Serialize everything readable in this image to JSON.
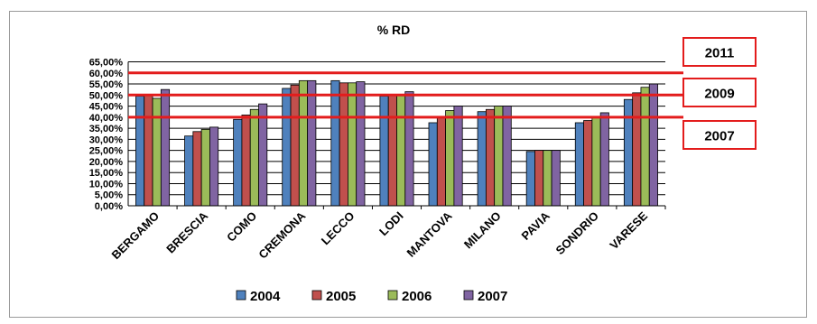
{
  "chart_data": {
    "type": "bar",
    "title": "% RD",
    "xlabel": "",
    "ylabel": "",
    "ylim": [
      0,
      65
    ],
    "y_ticks": [
      "0,00%",
      "5,00%",
      "10,00%",
      "15,00%",
      "20,00%",
      "25,00%",
      "30,00%",
      "35,00%",
      "40,00%",
      "45,00%",
      "50,00%",
      "55,00%",
      "60,00%",
      "65,00%"
    ],
    "grid": true,
    "legend_position": "bottom",
    "categories": [
      "BERGAMO",
      "BRESCIA",
      "COMO",
      "CREMONA",
      "LECCO",
      "LODI",
      "MANTOVA",
      "MILANO",
      "PAVIA",
      "SONDRIO",
      "VARESE"
    ],
    "series": [
      {
        "name": "2004",
        "color": "#4f81bd",
        "values": [
          49.5,
          31.5,
          39,
          53,
          56.5,
          49.5,
          37.5,
          42.5,
          24.5,
          37.5,
          48
        ]
      },
      {
        "name": "2005",
        "color": "#c0504d",
        "values": [
          50,
          33.5,
          41,
          54.5,
          55.5,
          50,
          40,
          43.5,
          25,
          38.5,
          51
        ]
      },
      {
        "name": "2006",
        "color": "#9bbb59",
        "values": [
          48.5,
          34.5,
          43.5,
          56.5,
          55.5,
          50,
          43,
          45,
          25,
          40,
          53.5
        ]
      },
      {
        "name": "2007",
        "color": "#8064a2",
        "values": [
          52.5,
          35.5,
          46,
          56.5,
          56,
          51.5,
          45,
          45,
          25,
          42,
          55
        ]
      }
    ],
    "annotations": [
      {
        "label": "2011",
        "value": 60,
        "color": "#e31c1c"
      },
      {
        "label": "2009",
        "value": 50,
        "color": "#e31c1c"
      },
      {
        "label": "2007",
        "value": 40,
        "color": "#e31c1c"
      }
    ]
  }
}
